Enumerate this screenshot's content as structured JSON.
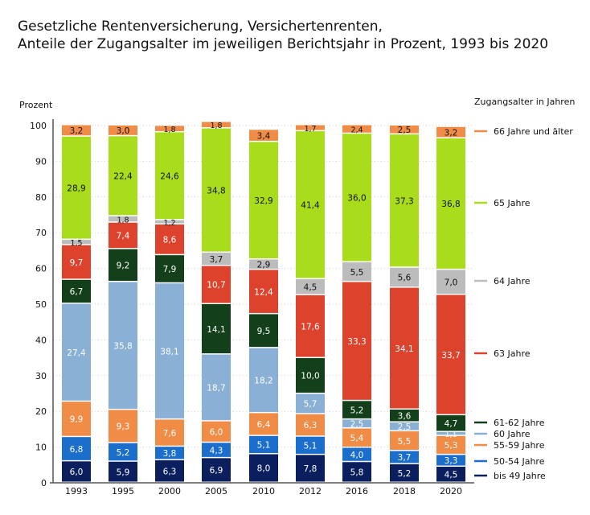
{
  "chart_data": {
    "type": "bar",
    "stacked": true,
    "title_lines": [
      "Gesetzliche Rentenversicherung, Versichertenrenten,",
      "Anteile der Zugangsalter im jeweiligen Berichtsjahr in Prozent, 1993 bis 2020"
    ],
    "ylabel": "Prozent",
    "ylim": [
      0,
      100
    ],
    "yticks": [
      0,
      10,
      20,
      30,
      40,
      50,
      60,
      70,
      80,
      90,
      100
    ],
    "grid": true,
    "legend_title": "Zugangsalter in Jahren",
    "legend_placement": "right",
    "categories": [
      "1993",
      "1995",
      "2000",
      "2005",
      "2010",
      "2012",
      "2016",
      "2018",
      "2020"
    ],
    "series": [
      {
        "name": "bis 49 Jahre",
        "color": "#0b1f5e",
        "values": [
          6.0,
          5.9,
          6.3,
          6.9,
          8.0,
          7.8,
          5.8,
          5.2,
          4.5
        ]
      },
      {
        "name": "50-54 Jahre",
        "color": "#1b6ecc",
        "values": [
          6.8,
          5.2,
          3.8,
          4.3,
          5.1,
          5.1,
          4.0,
          3.7,
          3.3
        ]
      },
      {
        "name": "55-59 Jahre",
        "color": "#f08c45",
        "values": [
          9.9,
          9.3,
          7.6,
          6.0,
          6.4,
          6.3,
          5.4,
          5.5,
          5.3
        ]
      },
      {
        "name": "60 Jahre",
        "color": "#8ab0d6",
        "values": [
          27.4,
          35.8,
          38.1,
          18.7,
          18.2,
          5.7,
          2.5,
          2.5,
          1.1
        ]
      },
      {
        "name": "61-62 Jahre",
        "color": "#13401b",
        "values": [
          6.7,
          9.2,
          7.9,
          14.1,
          9.5,
          10.0,
          5.2,
          3.6,
          4.7
        ]
      },
      {
        "name": "63 Jahre",
        "color": "#dd432c",
        "values": [
          9.7,
          7.4,
          8.6,
          10.7,
          12.4,
          17.6,
          33.3,
          34.1,
          33.7
        ]
      },
      {
        "name": "64 Jahre",
        "color": "#bcbcbc",
        "values": [
          1.5,
          1.8,
          1.2,
          3.7,
          2.9,
          4.5,
          5.5,
          5.6,
          7.0
        ]
      },
      {
        "name": "65 Jahre",
        "color": "#a9dc1b",
        "values": [
          28.9,
          22.4,
          24.6,
          34.8,
          32.9,
          41.4,
          36.0,
          37.3,
          36.8
        ]
      },
      {
        "name": "66 Jahre und älter",
        "color": "#f08c45",
        "values": [
          3.2,
          3.0,
          1.8,
          1.8,
          3.4,
          1.7,
          2.4,
          2.5,
          3.2
        ]
      }
    ]
  }
}
